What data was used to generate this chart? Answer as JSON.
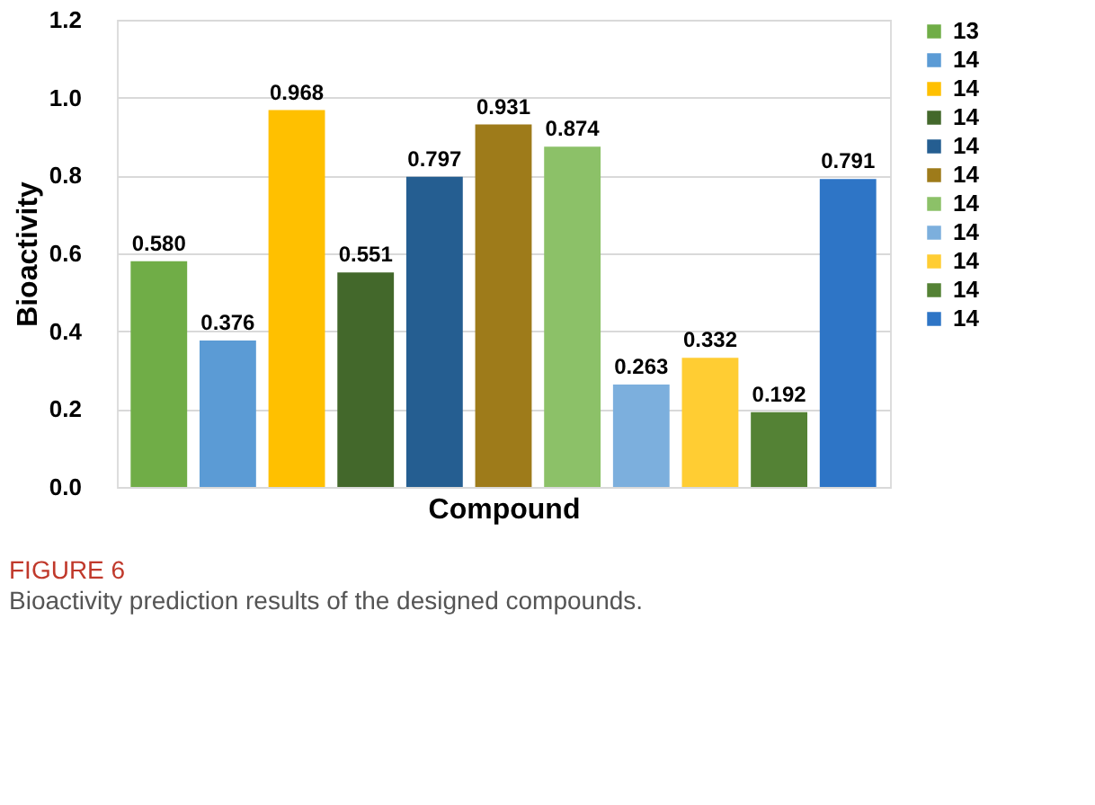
{
  "chart_data": {
    "type": "bar",
    "xlabel": "Compound",
    "ylabel": "Bioactivity",
    "categories": [
      null,
      null,
      null,
      null,
      null,
      null,
      null,
      null,
      null,
      null,
      null
    ],
    "series": [
      {
        "name": "13",
        "color": "#70ad47",
        "values": [
          0.58,
          null,
          null,
          null,
          null,
          null,
          null,
          null,
          null,
          null,
          null
        ],
        "value_labels": [
          "0.580",
          null,
          null,
          null,
          null,
          null,
          null,
          null,
          null,
          null,
          null
        ]
      },
      {
        "name": "14",
        "color": "#5b9bd5",
        "values": [
          null,
          0.376,
          null,
          null,
          null,
          null,
          null,
          null,
          null,
          null,
          null
        ],
        "value_labels": [
          null,
          "0.376",
          null,
          null,
          null,
          null,
          null,
          null,
          null,
          null,
          null
        ]
      },
      {
        "name": "14",
        "color": "#ffc000",
        "values": [
          null,
          null,
          0.968,
          null,
          null,
          null,
          null,
          null,
          null,
          null,
          null
        ],
        "value_labels": [
          null,
          null,
          "0.968",
          null,
          null,
          null,
          null,
          null,
          null,
          null,
          null
        ]
      },
      {
        "name": "14",
        "color": "#43682b",
        "values": [
          null,
          null,
          null,
          0.551,
          null,
          null,
          null,
          null,
          null,
          null,
          null
        ],
        "value_labels": [
          null,
          null,
          null,
          "0.551",
          null,
          null,
          null,
          null,
          null,
          null,
          null
        ]
      },
      {
        "name": "14",
        "color": "#255e91",
        "values": [
          null,
          null,
          null,
          null,
          0.797,
          null,
          null,
          null,
          null,
          null,
          null
        ],
        "value_labels": [
          null,
          null,
          null,
          null,
          "0.797",
          null,
          null,
          null,
          null,
          null,
          null
        ]
      },
      {
        "name": "14",
        "color": "#9e7b1a",
        "values": [
          null,
          null,
          null,
          null,
          null,
          0.931,
          null,
          null,
          null,
          null,
          null
        ],
        "value_labels": [
          null,
          null,
          null,
          null,
          null,
          "0.931",
          null,
          null,
          null,
          null,
          null
        ]
      },
      {
        "name": "14",
        "color": "#8cc168",
        "values": [
          null,
          null,
          null,
          null,
          null,
          null,
          0.874,
          null,
          null,
          null,
          null
        ],
        "value_labels": [
          null,
          null,
          null,
          null,
          null,
          null,
          "0.874",
          null,
          null,
          null,
          null
        ]
      },
      {
        "name": "14",
        "color": "#7cafdd",
        "values": [
          null,
          null,
          null,
          null,
          null,
          null,
          null,
          0.263,
          null,
          null,
          null
        ],
        "value_labels": [
          null,
          null,
          null,
          null,
          null,
          null,
          null,
          "0.263",
          null,
          null,
          null
        ]
      },
      {
        "name": "14",
        "color": "#ffcd33",
        "values": [
          null,
          null,
          null,
          null,
          null,
          null,
          null,
          null,
          0.332,
          null,
          null
        ],
        "value_labels": [
          null,
          null,
          null,
          null,
          null,
          null,
          null,
          null,
          "0.332",
          null,
          null
        ]
      },
      {
        "name": "14",
        "color": "#548235",
        "values": [
          null,
          null,
          null,
          null,
          null,
          null,
          null,
          null,
          null,
          0.192,
          null
        ],
        "value_labels": [
          null,
          null,
          null,
          null,
          null,
          null,
          null,
          null,
          null,
          "0.192",
          null
        ]
      },
      {
        "name": "14",
        "color": "#2e75c6",
        "values": [
          null,
          null,
          null,
          null,
          null,
          null,
          null,
          null,
          null,
          null,
          0.791
        ],
        "value_labels": [
          null,
          null,
          null,
          null,
          null,
          null,
          null,
          null,
          null,
          null,
          "0.791"
        ]
      }
    ],
    "ylim": [
      0,
      1.2
    ],
    "yticks": [
      {
        "value": 0,
        "label": "0.0"
      },
      0.2,
      0.4,
      0.6,
      0.8,
      {
        "value": 1,
        "label": "1.0"
      },
      1.2
    ],
    "grid": "y",
    "legend": "right",
    "annotations": [
      "FIGURE 6",
      "Bioactivity prediction results of the designed compounds."
    ]
  }
}
